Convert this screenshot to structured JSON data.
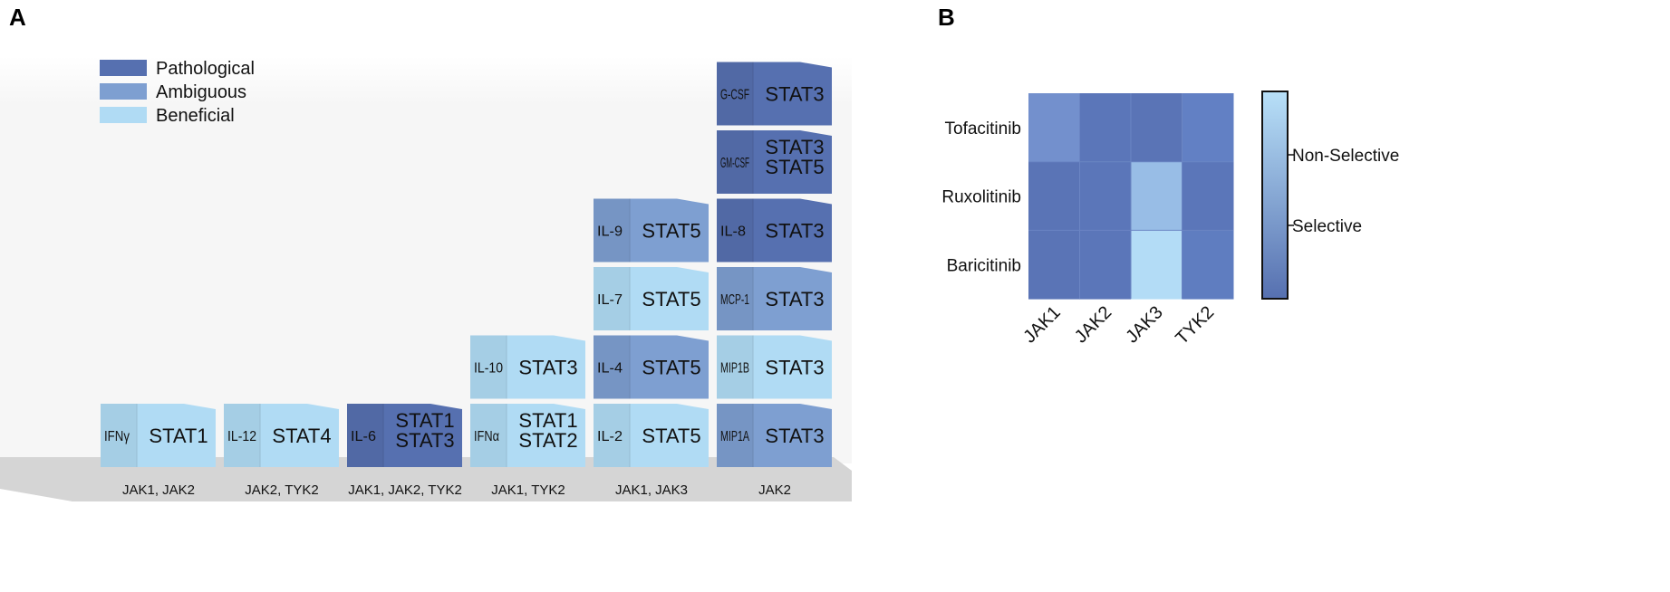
{
  "panel_a": {
    "label": "A",
    "legend": [
      {
        "key": "pathological",
        "label": "Pathological",
        "color": "#5670b0"
      },
      {
        "key": "ambiguous",
        "label": "Ambiguous",
        "color": "#7e9fd1"
      },
      {
        "key": "beneficial",
        "label": "Beneficial",
        "color": "#b0dbf4"
      }
    ],
    "columns": [
      {
        "jak": "JAK1, JAK2",
        "blocks": [
          {
            "cytokine": "IFNγ",
            "stats": [
              "STAT1"
            ],
            "category": "beneficial"
          }
        ]
      },
      {
        "jak": "JAK2, TYK2",
        "blocks": [
          {
            "cytokine": "IL-12",
            "stats": [
              "STAT4"
            ],
            "category": "beneficial"
          }
        ]
      },
      {
        "jak": "JAK1, JAK2, TYK2",
        "blocks": [
          {
            "cytokine": "IL-6",
            "stats": [
              "STAT1",
              "STAT3"
            ],
            "category": "pathological"
          }
        ]
      },
      {
        "jak": "JAK1, TYK2",
        "blocks": [
          {
            "cytokine": "IFNα",
            "stats": [
              "STAT1",
              "STAT2"
            ],
            "category": "beneficial"
          },
          {
            "cytokine": "IL-10",
            "stats": [
              "STAT3"
            ],
            "category": "beneficial"
          }
        ]
      },
      {
        "jak": "JAK1, JAK3",
        "blocks": [
          {
            "cytokine": "IL-2",
            "stats": [
              "STAT5"
            ],
            "category": "beneficial"
          },
          {
            "cytokine": "IL-4",
            "stats": [
              "STAT5"
            ],
            "category": "ambiguous"
          },
          {
            "cytokine": "IL-7",
            "stats": [
              "STAT5"
            ],
            "category": "beneficial"
          },
          {
            "cytokine": "IL-9",
            "stats": [
              "STAT5"
            ],
            "category": "ambiguous"
          }
        ]
      },
      {
        "jak": "JAK2",
        "blocks": [
          {
            "cytokine": "MIP1A",
            "stats": [
              "STAT3"
            ],
            "category": "ambiguous"
          },
          {
            "cytokine": "MIP1B",
            "stats": [
              "STAT3"
            ],
            "category": "beneficial"
          },
          {
            "cytokine": "MCP-1",
            "stats": [
              "STAT3"
            ],
            "category": "ambiguous"
          },
          {
            "cytokine": "IL-8",
            "stats": [
              "STAT3"
            ],
            "category": "pathological"
          },
          {
            "cytokine": "GM-CSF",
            "stats": [
              "STAT3",
              "STAT5"
            ],
            "category": "pathological"
          },
          {
            "cytokine": "G-CSF",
            "stats": [
              "STAT3"
            ],
            "category": "pathological"
          }
        ]
      }
    ]
  },
  "panel_b": {
    "label": "B",
    "rows": [
      "Tofacitinib",
      "Ruxolitinib",
      "Baricitinib"
    ],
    "cols": [
      "JAK1",
      "JAK2",
      "JAK3",
      "TYK2"
    ],
    "matrix": [
      [
        "#7390cd",
        "#5b76b9",
        "#5a74b6",
        "#6280c4"
      ],
      [
        "#5a74b6",
        "#5b76b9",
        "#98bde6",
        "#5b76b9"
      ],
      [
        "#5a74b6",
        "#5b76b9",
        "#b3dcf6",
        "#5f7dc0"
      ]
    ],
    "colorbar": {
      "labels": [
        "Non-Selective",
        "Selective"
      ],
      "top_color": "#b8e0f8",
      "bottom_color": "#5670b0"
    }
  }
}
